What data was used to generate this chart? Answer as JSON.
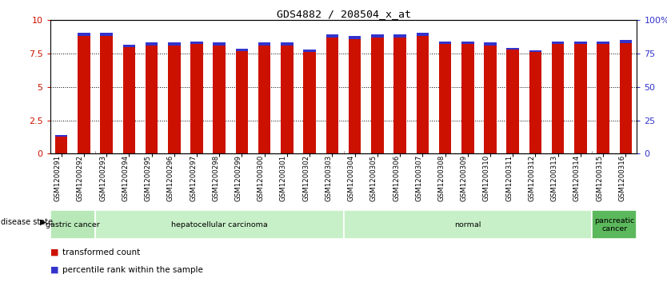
{
  "title": "GDS4882 / 208504_x_at",
  "samples": [
    "GSM1200291",
    "GSM1200292",
    "GSM1200293",
    "GSM1200294",
    "GSM1200295",
    "GSM1200296",
    "GSM1200297",
    "GSM1200298",
    "GSM1200299",
    "GSM1200300",
    "GSM1200301",
    "GSM1200302",
    "GSM1200303",
    "GSM1200304",
    "GSM1200305",
    "GSM1200306",
    "GSM1200307",
    "GSM1200308",
    "GSM1200309",
    "GSM1200310",
    "GSM1200311",
    "GSM1200312",
    "GSM1200313",
    "GSM1200314",
    "GSM1200315",
    "GSM1200316"
  ],
  "red_values": [
    1.3,
    8.8,
    8.8,
    8.0,
    8.1,
    8.1,
    8.2,
    8.1,
    7.7,
    8.1,
    8.1,
    7.6,
    8.7,
    8.6,
    8.7,
    8.7,
    8.8,
    8.2,
    8.2,
    8.1,
    7.8,
    7.6,
    8.2,
    8.2,
    8.2,
    8.3
  ],
  "blue_values": [
    0.12,
    0.25,
    0.25,
    0.18,
    0.25,
    0.22,
    0.22,
    0.22,
    0.18,
    0.22,
    0.22,
    0.2,
    0.25,
    0.25,
    0.25,
    0.25,
    0.25,
    0.22,
    0.22,
    0.22,
    0.15,
    0.15,
    0.22,
    0.22,
    0.22,
    0.22
  ],
  "group_boundaries": [
    [
      0,
      2,
      "gastric cancer",
      "#b8e8b8"
    ],
    [
      2,
      13,
      "hepatocellular carcinoma",
      "#c8f0c8"
    ],
    [
      13,
      24,
      "normal",
      "#c8f0c8"
    ],
    [
      24,
      26,
      "pancreatic\ncancer",
      "#5cb85c"
    ]
  ],
  "bar_width": 0.55,
  "red_color": "#CC1100",
  "blue_color": "#3333CC",
  "bg_color": "#ffffff",
  "ylim": [
    0,
    10
  ],
  "left_yticks": [
    0,
    2.5,
    5.0,
    7.5,
    10
  ],
  "left_yticklabels": [
    "0",
    "2.5",
    "5",
    "7.5",
    "10"
  ],
  "right_yticks_norm": [
    0.0,
    2.5,
    5.0,
    7.5,
    10.0
  ],
  "right_yticklabels": [
    "0",
    "25",
    "50",
    "75",
    "100%"
  ],
  "legend_red_label": "transformed count",
  "legend_blue_label": "percentile rank within the sample",
  "disease_state_label": "disease state"
}
